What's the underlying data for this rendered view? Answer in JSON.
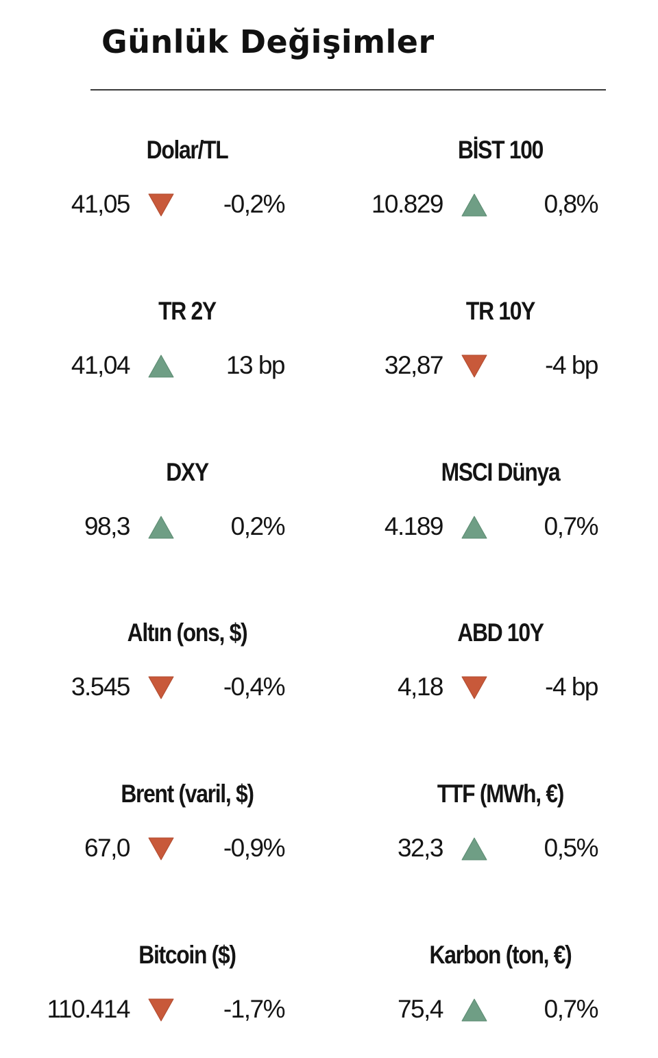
{
  "title": "Günlük Değişimler",
  "colors": {
    "up": "#6f9e85",
    "down": "#c8593a"
  },
  "items": [
    {
      "label": "Dolar/TL",
      "value": "41,05",
      "direction": "down",
      "change": "-0,2%"
    },
    {
      "label": "BİST 100",
      "value": "10.829",
      "direction": "up",
      "change": "0,8%"
    },
    {
      "label": "TR 2Y",
      "value": "41,04",
      "direction": "up",
      "change": "13 bp"
    },
    {
      "label": "TR 10Y",
      "value": "32,87",
      "direction": "down",
      "change": "-4 bp"
    },
    {
      "label": "DXY",
      "value": "98,3",
      "direction": "up",
      "change": "0,2%"
    },
    {
      "label": "MSCI Dünya",
      "value": "4.189",
      "direction": "up",
      "change": "0,7%"
    },
    {
      "label": "Altın (ons, $)",
      "value": "3.545",
      "direction": "down",
      "change": "-0,4%"
    },
    {
      "label": "ABD 10Y",
      "value": "4,18",
      "direction": "down",
      "change": "-4 bp"
    },
    {
      "label": "Brent (varil, $)",
      "value": "67,0",
      "direction": "down",
      "change": "-0,9%"
    },
    {
      "label": "TTF (MWh, €)",
      "value": "32,3",
      "direction": "up",
      "change": "0,5%"
    },
    {
      "label": "Bitcoin ($)",
      "value": "110.414",
      "direction": "down",
      "change": "-1,7%"
    },
    {
      "label": "Karbon (ton, €)",
      "value": "75,4",
      "direction": "up",
      "change": "0,7%"
    }
  ]
}
